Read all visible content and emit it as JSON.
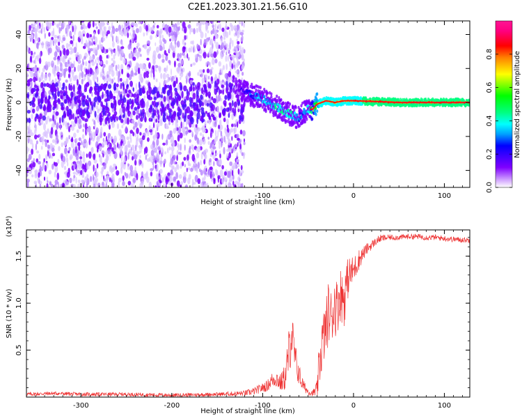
{
  "figure_title": "C2E1.2023.301.21.56.G10",
  "chart_data": [
    {
      "type": "heatmap",
      "title": "",
      "xlabel": "Height of straight line (km)",
      "ylabel": "Frequency (Hz)",
      "xlim": [
        -360,
        128
      ],
      "ylim": [
        -50,
        48
      ],
      "x_ticks": [
        -300,
        -200,
        -100,
        0,
        100
      ],
      "y_ticks": [
        -40,
        -20,
        0,
        20,
        40
      ],
      "colorbar": {
        "label": "Normalized spectral amplitude",
        "range": [
          0,
          1
        ],
        "ticks": [
          "0.0",
          "0.2",
          "0.4",
          "0.6",
          "0.8"
        ],
        "tick_values": [
          0.0,
          0.2,
          0.4,
          0.6,
          0.8
        ],
        "colors": [
          "#ffffff",
          "#cc99ff",
          "#7f00ff",
          "#3300ff",
          "#0000ff",
          "#00a0ff",
          "#00ffff",
          "#00ff80",
          "#00ff00",
          "#ffff00",
          "#ff8000",
          "#ff0000",
          "#ff0080",
          "#ff1493"
        ]
      },
      "ridge": {
        "x": [
          -130,
          -120,
          -110,
          -100,
          -90,
          -80,
          -70,
          -60,
          -55,
          -50,
          -45,
          -40,
          -30,
          -20,
          -10,
          0,
          50,
          128
        ],
        "y": [
          8,
          6,
          4,
          2,
          -1,
          -4,
          -7,
          -9,
          -6,
          -4,
          -4,
          -1,
          1,
          0,
          1,
          1,
          0,
          0
        ],
        "amplitude": [
          0.15,
          0.25,
          0.4,
          0.45,
          0.5,
          0.55,
          0.55,
          0.4,
          0.35,
          0.5,
          0.7,
          0.8,
          0.85,
          0.85,
          0.85,
          0.9,
          0.95,
          0.95
        ]
      },
      "noise_region_x": [
        -360,
        -120
      ]
    },
    {
      "type": "line",
      "title": "",
      "xlabel": "Height of straight line (km)",
      "ylabel": "SNR (10 * v/v)",
      "y_multiplier": "(x10⁴)",
      "xlim": [
        -360,
        128
      ],
      "ylim": [
        0,
        1.78
      ],
      "x_ticks": [
        -300,
        -200,
        -100,
        0,
        100
      ],
      "y_ticks": [
        "0.5",
        "1.0",
        "1.5"
      ],
      "y_tick_values": [
        0.5,
        1.0,
        1.5
      ],
      "series": [
        {
          "color": "#ee3333",
          "x": [
            -360,
            -330,
            -300,
            -250,
            -200,
            -150,
            -120,
            -110,
            -100,
            -95,
            -90,
            -85,
            -80,
            -75,
            -70,
            -68,
            -65,
            -62,
            -60,
            -58,
            -55,
            -50,
            -45,
            -40,
            -38,
            -35,
            -30,
            -28,
            -25,
            -20,
            -18,
            -15,
            -10,
            -8,
            -5,
            0,
            5,
            10,
            15,
            20,
            25,
            30,
            40,
            50,
            60,
            70,
            80,
            90,
            100,
            110,
            128
          ],
          "y": [
            0.03,
            0.04,
            0.03,
            0.03,
            0.02,
            0.03,
            0.04,
            0.06,
            0.1,
            0.12,
            0.18,
            0.2,
            0.15,
            0.22,
            0.55,
            0.7,
            0.45,
            0.3,
            0.25,
            0.18,
            0.12,
            0.06,
            0.04,
            0.08,
            0.3,
            0.55,
            0.75,
            0.9,
            0.85,
            1.0,
            0.95,
            1.1,
            1.05,
            1.2,
            1.3,
            1.35,
            1.45,
            1.52,
            1.58,
            1.62,
            1.66,
            1.69,
            1.7,
            1.7,
            1.71,
            1.71,
            1.7,
            1.7,
            1.69,
            1.68,
            1.67
          ],
          "spread": [
            0.02,
            0.02,
            0.02,
            0.02,
            0.02,
            0.02,
            0.03,
            0.04,
            0.05,
            0.06,
            0.08,
            0.1,
            0.1,
            0.15,
            0.3,
            0.25,
            0.2,
            0.15,
            0.12,
            0.1,
            0.06,
            0.04,
            0.03,
            0.1,
            0.25,
            0.3,
            0.3,
            0.35,
            0.3,
            0.35,
            0.3,
            0.3,
            0.3,
            0.25,
            0.2,
            0.15,
            0.12,
            0.08,
            0.06,
            0.05,
            0.04,
            0.04,
            0.03,
            0.03,
            0.03,
            0.03,
            0.03,
            0.03,
            0.03,
            0.03,
            0.03
          ]
        }
      ]
    }
  ]
}
